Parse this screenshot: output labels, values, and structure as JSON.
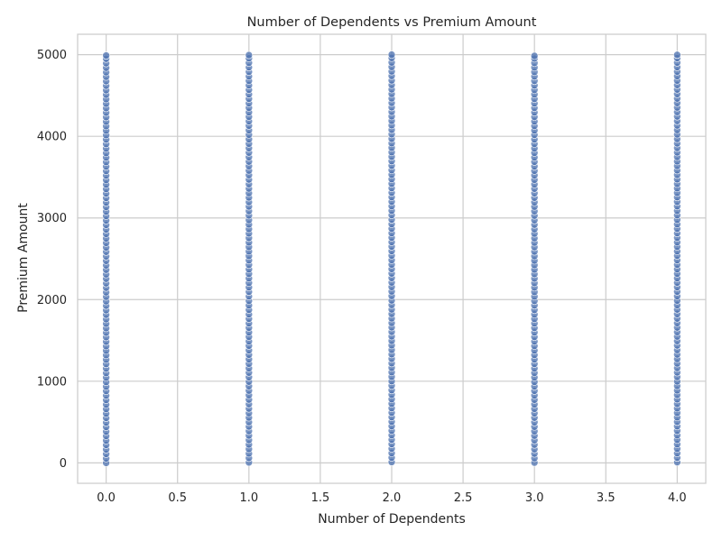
{
  "chart_data": {
    "type": "scatter",
    "title": "Number of Dependents vs Premium Amount",
    "xlabel": "Number of Dependents",
    "ylabel": "Premium Amount",
    "xlim": [
      -0.2,
      4.2
    ],
    "ylim": [
      -250,
      5250
    ],
    "x_ticks": [
      0.0,
      0.5,
      1.0,
      1.5,
      2.0,
      2.5,
      3.0,
      3.5,
      4.0
    ],
    "x_tick_labels": [
      "0.0",
      "0.5",
      "1.0",
      "1.5",
      "2.0",
      "2.5",
      "3.0",
      "3.5",
      "4.0"
    ],
    "y_ticks": [
      0,
      1000,
      2000,
      3000,
      4000,
      5000
    ],
    "y_tick_labels": [
      "0",
      "1000",
      "2000",
      "3000",
      "4000",
      "5000"
    ],
    "grid": true,
    "legend": "none",
    "colors": {
      "marker": "#4c72b0",
      "marker_edge": "#ffffff",
      "grid": "#cccccc",
      "spine": "#cccccc",
      "background": "#ffffff",
      "text": "#262626"
    },
    "series": [
      {
        "color": "#4c72b0",
        "x_values": [
          0,
          1,
          2,
          3,
          4
        ],
        "y_range": [
          0,
          5000
        ],
        "point_groups": [
          {
            "x": 0,
            "y": [
              0,
              55,
              110,
              165,
              220,
              275,
              330,
              385,
              440,
              495,
              550,
              605,
              660,
              715,
              770,
              825,
              880,
              935,
              990,
              1045,
              1100,
              1155,
              1210,
              1265,
              1320,
              1375,
              1430,
              1485,
              1540,
              1595,
              1650,
              1705,
              1760,
              1815,
              1870,
              1925,
              1980,
              2035,
              2090,
              2145,
              2200,
              2255,
              2310,
              2365,
              2420,
              2475,
              2530,
              2585,
              2640,
              2695,
              2750,
              2805,
              2860,
              2915,
              2970,
              3025,
              3080,
              3135,
              3190,
              3245,
              3300,
              3355,
              3410,
              3465,
              3520,
              3575,
              3630,
              3685,
              3740,
              3795,
              3850,
              3905,
              3960,
              4015,
              4070,
              4125,
              4180,
              4235,
              4290,
              4345,
              4400,
              4455,
              4510,
              4565,
              4620,
              4675,
              4730,
              4785,
              4840,
              4895,
              4950,
              4990
            ]
          },
          {
            "x": 1,
            "y": [
              5,
              60,
              115,
              170,
              225,
              280,
              335,
              390,
              445,
              500,
              555,
              610,
              665,
              720,
              775,
              830,
              885,
              940,
              995,
              1050,
              1105,
              1160,
              1215,
              1270,
              1325,
              1380,
              1435,
              1490,
              1545,
              1600,
              1655,
              1710,
              1765,
              1820,
              1875,
              1930,
              1985,
              2040,
              2095,
              2150,
              2205,
              2260,
              2315,
              2370,
              2425,
              2480,
              2535,
              2590,
              2645,
              2700,
              2755,
              2810,
              2865,
              2920,
              2975,
              3030,
              3085,
              3140,
              3195,
              3250,
              3305,
              3360,
              3415,
              3470,
              3525,
              3580,
              3635,
              3690,
              3745,
              3800,
              3855,
              3910,
              3965,
              4020,
              4075,
              4130,
              4185,
              4240,
              4295,
              4350,
              4405,
              4460,
              4515,
              4570,
              4625,
              4680,
              4735,
              4790,
              4845,
              4900,
              4955,
              4995
            ]
          },
          {
            "x": 2,
            "y": [
              10,
              65,
              120,
              175,
              230,
              285,
              340,
              395,
              450,
              505,
              560,
              615,
              670,
              725,
              780,
              835,
              890,
              945,
              1000,
              1055,
              1110,
              1165,
              1220,
              1275,
              1330,
              1385,
              1440,
              1495,
              1550,
              1605,
              1660,
              1715,
              1770,
              1825,
              1880,
              1935,
              1990,
              2045,
              2100,
              2155,
              2210,
              2265,
              2320,
              2375,
              2430,
              2485,
              2540,
              2595,
              2650,
              2705,
              2760,
              2815,
              2870,
              2925,
              2980,
              3035,
              3090,
              3145,
              3200,
              3255,
              3310,
              3365,
              3420,
              3475,
              3530,
              3585,
              3640,
              3695,
              3750,
              3805,
              3860,
              3915,
              3970,
              4025,
              4080,
              4135,
              4190,
              4245,
              4300,
              4355,
              4410,
              4465,
              4520,
              4575,
              4630,
              4685,
              4740,
              4795,
              4850,
              4905,
              4960,
              5000
            ]
          },
          {
            "x": 3,
            "y": [
              3,
              58,
              113,
              168,
              223,
              278,
              333,
              388,
              443,
              498,
              553,
              608,
              663,
              718,
              773,
              828,
              883,
              938,
              993,
              1048,
              1103,
              1158,
              1213,
              1268,
              1323,
              1378,
              1433,
              1488,
              1543,
              1598,
              1653,
              1708,
              1763,
              1818,
              1873,
              1928,
              1983,
              2038,
              2093,
              2148,
              2203,
              2258,
              2313,
              2368,
              2423,
              2478,
              2533,
              2588,
              2643,
              2698,
              2753,
              2808,
              2863,
              2918,
              2973,
              3028,
              3083,
              3138,
              3193,
              3248,
              3303,
              3358,
              3413,
              3468,
              3523,
              3578,
              3633,
              3688,
              3743,
              3798,
              3853,
              3908,
              3963,
              4018,
              4073,
              4128,
              4183,
              4238,
              4293,
              4348,
              4403,
              4458,
              4513,
              4568,
              4623,
              4678,
              4733,
              4788,
              4843,
              4898,
              4953,
              4985
            ]
          },
          {
            "x": 4,
            "y": [
              8,
              63,
              118,
              173,
              228,
              283,
              338,
              393,
              448,
              503,
              558,
              613,
              668,
              723,
              778,
              833,
              888,
              943,
              998,
              1053,
              1108,
              1163,
              1218,
              1273,
              1328,
              1383,
              1438,
              1493,
              1548,
              1603,
              1658,
              1713,
              1768,
              1823,
              1878,
              1933,
              1988,
              2043,
              2098,
              2153,
              2208,
              2263,
              2318,
              2373,
              2428,
              2483,
              2538,
              2593,
              2648,
              2703,
              2758,
              2813,
              2868,
              2923,
              2978,
              3033,
              3088,
              3143,
              3198,
              3253,
              3308,
              3363,
              3418,
              3473,
              3528,
              3583,
              3638,
              3693,
              3748,
              3803,
              3858,
              3913,
              3968,
              4023,
              4078,
              4133,
              4188,
              4243,
              4298,
              4353,
              4408,
              4463,
              4518,
              4573,
              4628,
              4683,
              4738,
              4793,
              4848,
              4903,
              4958,
              4998
            ]
          }
        ]
      }
    ]
  }
}
